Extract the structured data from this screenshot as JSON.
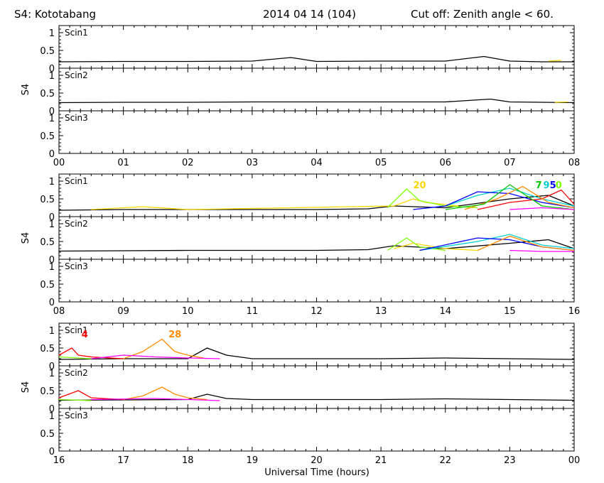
{
  "header": {
    "station": "S4: Kototabang",
    "date": "2014 04 14 (104)",
    "cutoff": "Cut off: Zenith angle < 60."
  },
  "xlabel": "Universal Time (hours)",
  "chart_data": {
    "type": "line",
    "ylabel": "S4",
    "ylim": [
      0,
      1.2
    ],
    "yticks": [
      "1",
      "0.5",
      "0"
    ],
    "rows": [
      {
        "xticks": [
          "00",
          "01",
          "02",
          "03",
          "04",
          "05",
          "06",
          "07",
          "08"
        ],
        "xlim": [
          0,
          8
        ],
        "panels": [
          {
            "label": "Scin1",
            "series": [
              {
                "color": "#000000",
                "x": [
                  0,
                  1,
                  2,
                  3,
                  3.6,
                  4,
                  5,
                  6,
                  6.6,
                  7,
                  7.5,
                  8
                ],
                "y": [
                  0.18,
                  0.19,
                  0.19,
                  0.2,
                  0.3,
                  0.19,
                  0.2,
                  0.2,
                  0.33,
                  0.2,
                  0.18,
                  0.18
                ]
              },
              {
                "color": "#ffd700",
                "x": [
                  7.6,
                  7.8
                ],
                "y": [
                  0.2,
                  0.22
                ]
              }
            ],
            "prn": []
          },
          {
            "label": "Scin2",
            "series": [
              {
                "color": "#000000",
                "x": [
                  0,
                  1,
                  2,
                  3,
                  4,
                  5,
                  6,
                  6.7,
                  7,
                  8
                ],
                "y": [
                  0.23,
                  0.24,
                  0.24,
                  0.25,
                  0.25,
                  0.25,
                  0.25,
                  0.33,
                  0.25,
                  0.23
                ]
              },
              {
                "color": "#ffd700",
                "x": [
                  7.7,
                  7.9
                ],
                "y": [
                  0.24,
                  0.25
                ]
              }
            ],
            "prn": []
          },
          {
            "label": "Scin3",
            "series": [],
            "prn": []
          }
        ]
      },
      {
        "xticks": [
          "08",
          "09",
          "10",
          "11",
          "12",
          "13",
          "14",
          "15",
          "16"
        ],
        "xlim": [
          8,
          16
        ],
        "panels": [
          {
            "label": "Scin1",
            "series": [
              {
                "color": "#000000",
                "x": [
                  8,
                  9,
                  10,
                  11,
                  12,
                  12.8,
                  13.2,
                  14,
                  15,
                  15.6,
                  16
                ],
                "y": [
                  0.18,
                  0.2,
                  0.2,
                  0.2,
                  0.2,
                  0.22,
                  0.3,
                  0.25,
                  0.5,
                  0.6,
                  0.3
                ]
              },
              {
                "color": "#ffd700",
                "x": [
                  8.5,
                  9.3,
                  10,
                  13.2,
                  13.5,
                  13.7,
                  14.2
                ],
                "y": [
                  0.2,
                  0.28,
                  0.2,
                  0.3,
                  0.5,
                  0.4,
                  0.3
                ]
              },
              {
                "color": "#7fff00",
                "x": [
                  13.1,
                  13.4,
                  13.6,
                  14,
                  14.5
                ],
                "y": [
                  0.25,
                  0.78,
                  0.45,
                  0.3,
                  0.25
                ]
              },
              {
                "color": "#00d0d0",
                "x": [
                  13.6,
                  14,
                  14.5,
                  15,
                  15.5,
                  16
                ],
                "y": [
                  0.22,
                  0.3,
                  0.6,
                  0.8,
                  0.5,
                  0.3
                ]
              },
              {
                "color": "#0000ff",
                "x": [
                  13.5,
                  14,
                  14.5,
                  15,
                  15.5,
                  16
                ],
                "y": [
                  0.2,
                  0.3,
                  0.7,
                  0.65,
                  0.4,
                  0.25
                ]
              },
              {
                "color": "#ff0000",
                "x": [
                  14.5,
                  15,
                  15.5,
                  15.8,
                  16
                ],
                "y": [
                  0.2,
                  0.4,
                  0.5,
                  0.75,
                  0.35
                ]
              },
              {
                "color": "#ff8c00",
                "x": [
                  14.3,
                  14.8,
                  15.2,
                  15.6,
                  16
                ],
                "y": [
                  0.2,
                  0.5,
                  0.85,
                  0.4,
                  0.25
                ]
              },
              {
                "color": "#00c800",
                "x": [
                  14,
                  14.6,
                  15,
                  15.5,
                  16
                ],
                "y": [
                  0.2,
                  0.35,
                  0.9,
                  0.3,
                  0.2
                ]
              },
              {
                "color": "#ff00ff",
                "x": [
                  15,
                  15.5,
                  16
                ],
                "y": [
                  0.2,
                  0.25,
                  0.2
                ]
              }
            ],
            "prn": [
              {
                "text": "20",
                "x": 13.6,
                "color": "#ffd700"
              },
              {
                "text": "7",
                "x": 15.45,
                "color": "#00c800"
              },
              {
                "text": "9",
                "x": 15.57,
                "color": "#00d0d0"
              },
              {
                "text": "5",
                "x": 15.67,
                "color": "#0000ff"
              },
              {
                "text": "0",
                "x": 15.76,
                "color": "#7fff00"
              }
            ]
          },
          {
            "label": "Scin2",
            "series": [
              {
                "color": "#000000",
                "x": [
                  8,
                  9,
                  10,
                  11,
                  12,
                  12.8,
                  13.2,
                  14,
                  15,
                  15.6,
                  16
                ],
                "y": [
                  0.23,
                  0.24,
                  0.25,
                  0.25,
                  0.25,
                  0.27,
                  0.38,
                  0.3,
                  0.45,
                  0.55,
                  0.3
                ]
              },
              {
                "color": "#ffd700",
                "x": [
                  13.2,
                  13.5,
                  14,
                  14.5
                ],
                "y": [
                  0.3,
                  0.45,
                  0.3,
                  0.25
                ]
              },
              {
                "color": "#7fff00",
                "x": [
                  13.1,
                  13.4,
                  13.6,
                  14
                ],
                "y": [
                  0.25,
                  0.6,
                  0.35,
                  0.25
                ]
              },
              {
                "color": "#00d0d0",
                "x": [
                  13.6,
                  14.5,
                  15,
                  15.5,
                  16
                ],
                "y": [
                  0.25,
                  0.5,
                  0.7,
                  0.4,
                  0.3
                ]
              },
              {
                "color": "#0000ff",
                "x": [
                  13.6,
                  14.5,
                  15,
                  15.5,
                  16
                ],
                "y": [
                  0.25,
                  0.6,
                  0.55,
                  0.35,
                  0.25
                ]
              },
              {
                "color": "#ff8c00",
                "x": [
                  14.5,
                  15,
                  15.5,
                  16
                ],
                "y": [
                  0.25,
                  0.65,
                  0.35,
                  0.25
                ]
              },
              {
                "color": "#ff00ff",
                "x": [
                  15,
                  15.5,
                  16
                ],
                "y": [
                  0.25,
                  0.22,
                  0.22
                ]
              }
            ],
            "prn": []
          },
          {
            "label": "Scin3",
            "series": [],
            "prn": []
          }
        ]
      },
      {
        "xticks": [
          "16",
          "17",
          "18",
          "19",
          "20",
          "21",
          "22",
          "23",
          "00"
        ],
        "xlim": [
          16,
          24
        ],
        "panels": [
          {
            "label": "Scin1",
            "series": [
              {
                "color": "#000000",
                "x": [
                  16,
                  17,
                  18,
                  18.3,
                  18.6,
                  19,
                  20,
                  21,
                  22,
                  23,
                  24
                ],
                "y": [
                  0.18,
                  0.2,
                  0.2,
                  0.5,
                  0.3,
                  0.2,
                  0.2,
                  0.2,
                  0.22,
                  0.2,
                  0.18
                ]
              },
              {
                "color": "#ff0000",
                "x": [
                  16,
                  16.2,
                  16.3,
                  16.5,
                  17
                ],
                "y": [
                  0.3,
                  0.5,
                  0.3,
                  0.25,
                  0.2
                ]
              },
              {
                "color": "#ff8c00",
                "x": [
                  17,
                  17.3,
                  17.6,
                  17.8,
                  18,
                  18.3
                ],
                "y": [
                  0.2,
                  0.4,
                  0.75,
                  0.4,
                  0.3,
                  0.2
                ]
              },
              {
                "color": "#ff00ff",
                "x": [
                  16.5,
                  17,
                  17.5,
                  18,
                  18.5
                ],
                "y": [
                  0.2,
                  0.3,
                  0.25,
                  0.22,
                  0.2
                ]
              },
              {
                "color": "#7fff00",
                "x": [
                  16,
                  16.5
                ],
                "y": [
                  0.25,
                  0.2
                ]
              }
            ],
            "prn": [
              {
                "text": "4",
                "x": 16.4,
                "color": "#ff0000"
              },
              {
                "text": "28",
                "x": 17.8,
                "color": "#ff8c00"
              }
            ]
          },
          {
            "label": "Scin2",
            "series": [
              {
                "color": "#000000",
                "x": [
                  16,
                  17,
                  18,
                  18.3,
                  18.6,
                  19,
                  20,
                  21,
                  22,
                  23,
                  24
                ],
                "y": [
                  0.23,
                  0.24,
                  0.25,
                  0.4,
                  0.28,
                  0.25,
                  0.25,
                  0.25,
                  0.27,
                  0.25,
                  0.23
                ]
              },
              {
                "color": "#ff0000",
                "x": [
                  16,
                  16.3,
                  16.5,
                  17
                ],
                "y": [
                  0.3,
                  0.5,
                  0.3,
                  0.25
                ]
              },
              {
                "color": "#ff8c00",
                "x": [
                  17,
                  17.3,
                  17.6,
                  17.8,
                  18,
                  18.3
                ],
                "y": [
                  0.25,
                  0.35,
                  0.6,
                  0.4,
                  0.3,
                  0.25
                ]
              },
              {
                "color": "#ff00ff",
                "x": [
                  16.5,
                  17.5,
                  18.5
                ],
                "y": [
                  0.25,
                  0.28,
                  0.22
                ]
              },
              {
                "color": "#7fff00",
                "x": [
                  16,
                  16.5
                ],
                "y": [
                  0.25,
                  0.22
                ]
              }
            ],
            "prn": []
          },
          {
            "label": "Scin3",
            "series": [],
            "prn": []
          }
        ]
      }
    ]
  }
}
